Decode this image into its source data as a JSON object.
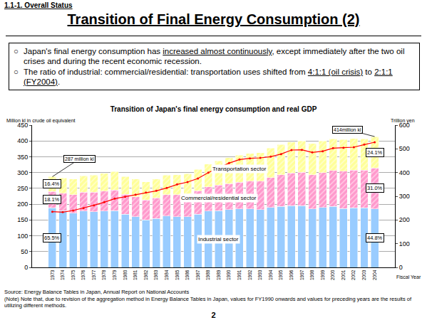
{
  "section": "1.1-1. Overall Status",
  "title": "Transition of Final Energy Consumption (2)",
  "bullet_mark": "○",
  "bullets": [
    [
      {
        "text": "Japan's final energy consumption has "
      },
      {
        "text": "increased almost continuously",
        "underline": true
      },
      {
        "text": ", except immediately after the two oil crises and during the recent economic recession."
      }
    ],
    [
      {
        "text": "The ratio of industrial: commercial/residential: transportation uses shifted from "
      },
      {
        "text": "4:1:1 (oil crisis)",
        "underline": true
      },
      {
        "text": " to "
      },
      {
        "text": "2:1:1 (FY2004)",
        "underline": true
      },
      {
        "text": "."
      }
    ]
  ],
  "chart_data": {
    "type": "bar",
    "stacked": true,
    "title": "Transition of Japan's final energy consumption and real GDP",
    "y_label": "Million kl in crude oil equivalent",
    "y2_label": "Trillion yen",
    "x_label": "Fiscal Year",
    "categories": [
      "1973",
      "1974",
      "1975",
      "1976",
      "1977",
      "1978",
      "1979",
      "1980",
      "1981",
      "1982",
      "1983",
      "1984",
      "1985",
      "1986",
      "1987",
      "1988",
      "1989",
      "1990",
      "1991",
      "1992",
      "1993",
      "1994",
      "1995",
      "1996",
      "1997",
      "1998",
      "1999",
      "2000",
      "2001",
      "2002",
      "2003",
      "2004"
    ],
    "series": [
      {
        "name": "Industrial sector",
        "color": "#99ccff",
        "values": [
          188,
          180,
          172,
          178,
          176,
          178,
          180,
          168,
          160,
          150,
          155,
          163,
          160,
          160,
          168,
          178,
          180,
          183,
          185,
          185,
          183,
          190,
          193,
          195,
          195,
          185,
          190,
          193,
          186,
          188,
          188,
          185.6
        ]
      },
      {
        "name": "Commercial/residential sector",
        "color": "#ff99cc",
        "values": [
          52,
          55,
          58,
          60,
          62,
          63,
          65,
          63,
          63,
          63,
          65,
          67,
          70,
          72,
          74,
          77,
          80,
          82,
          85,
          88,
          90,
          94,
          100,
          104,
          106,
          108,
          110,
          114,
          118,
          120,
          120,
          128.4
        ]
      },
      {
        "name": "Transportation sector",
        "color": "#ffff99",
        "values": [
          47,
          48,
          50,
          52,
          54,
          57,
          58,
          57,
          57,
          58,
          60,
          62,
          63,
          65,
          68,
          72,
          77,
          82,
          85,
          88,
          90,
          93,
          96,
          98,
          99,
          99,
          100,
          100,
          100,
          100,
          99,
          99.9
        ]
      },
      {
        "type": "line",
        "axis": "y2",
        "color": "#ff0000",
        "marker": "circle",
        "values": [
          235,
          233,
          240,
          250,
          262,
          275,
          290,
          298,
          307,
          316,
          323,
          335,
          350,
          360,
          375,
          400,
          420,
          440,
          455,
          460,
          462,
          467,
          478,
          495,
          496,
          485,
          490,
          503,
          505,
          507,
          518,
          528
        ]
      }
    ],
    "ylim": [
      0,
      450
    ],
    "yticks": [
      0,
      50,
      100,
      150,
      200,
      250,
      300,
      350,
      400,
      450
    ],
    "y2lim": [
      0,
      600
    ],
    "y2ticks": [
      0,
      100,
      200,
      300,
      400,
      500,
      600
    ],
    "grid": true,
    "annotations": [
      {
        "text": "287 million kl",
        "x": "1973"
      },
      {
        "text": "414million kl",
        "x": "2004"
      },
      {
        "text": "16.4%",
        "x": "1973",
        "series": "Transportation sector"
      },
      {
        "text": "18.1%",
        "x": "1973",
        "series": "Commercial/residential sector"
      },
      {
        "text": "65.5%",
        "x": "1973",
        "series": "Industrial sector"
      },
      {
        "text": "24.1%",
        "x": "2004",
        "series": "Transportation sector"
      },
      {
        "text": "31.0%",
        "x": "2004",
        "series": "Commercial/residential sector"
      },
      {
        "text": "44.8%",
        "x": "2004",
        "series": "Industrial sector"
      }
    ]
  },
  "source": "Source: Energy Balance Tables in Japan, Annual Report on National Accounts",
  "note": "(Note) Note that, due to revision of the aggregation method in Energy Balance Tables in Japan, values for FY1990 onwards and values for preceding years are the results of utilizing different methods.",
  "page": "2"
}
